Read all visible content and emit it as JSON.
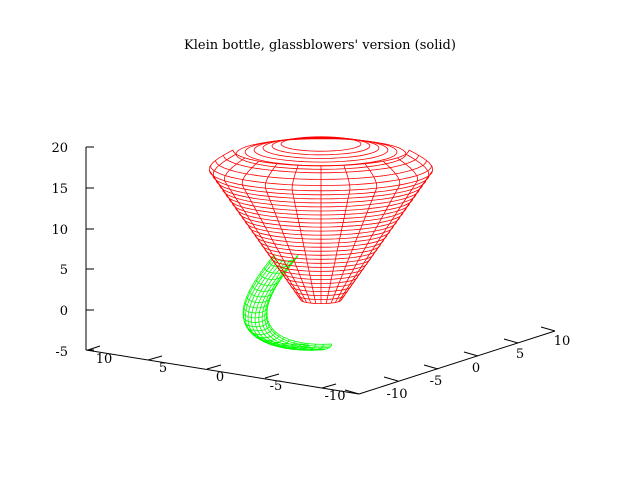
{
  "chart_data": {
    "type": "surface3d",
    "title": "Klein bottle, glassblowers' version (solid)",
    "zlim": [
      -5,
      20
    ],
    "z_ticks": [
      "20",
      "15",
      "10",
      "5",
      "0",
      "-5"
    ],
    "x_ticks_front": [
      "10",
      "5",
      "0",
      "-5",
      "-10"
    ],
    "y_ticks_right": [
      "-10",
      "-5",
      "0",
      "5",
      "10"
    ],
    "series": [
      {
        "name": "bowl",
        "color": "#ff0000",
        "description": "red flared bowl surface, top rim near z=17, narrowing to neck near z=1"
      },
      {
        "name": "handle",
        "color": "#00ff00",
        "description": "green tube handle looping from bowl side down below base"
      }
    ]
  }
}
